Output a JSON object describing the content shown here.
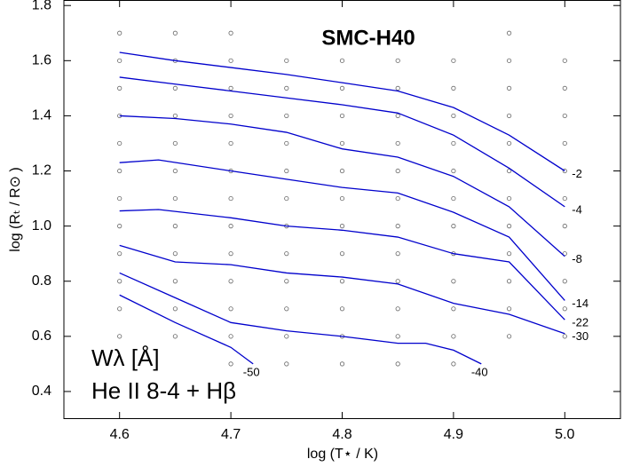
{
  "chart_data": {
    "type": "line",
    "title": "SMC-H40",
    "xlabel": "log (T⋆ / K)",
    "ylabel": "log (Rₜ / R⊙ )",
    "annotations": [
      "Wλ [Å]",
      "He II 8-4 + Hβ"
    ],
    "xlim": [
      4.55,
      5.05
    ],
    "ylim": [
      0.3,
      1.82
    ],
    "xticks": [
      4.6,
      4.7,
      4.8,
      4.9,
      {
        "value": 5,
        "label": "5.0"
      }
    ],
    "yticks": [
      0.4,
      0.6,
      0.8,
      {
        "value": 1,
        "label": "1.0"
      },
      1.2,
      1.4,
      1.6,
      1.8
    ],
    "series": [
      {
        "name": "-2",
        "color": "#0000cc",
        "x": [
          4.6,
          4.65,
          4.7,
          4.75,
          4.8,
          4.85,
          4.9,
          4.95,
          5.0
        ],
        "values": [
          1.63,
          1.6,
          1.575,
          1.55,
          1.52,
          1.49,
          1.43,
          1.33,
          1.2
        ]
      },
      {
        "name": "-4",
        "color": "#0000cc",
        "x": [
          4.6,
          4.65,
          4.7,
          4.75,
          4.8,
          4.85,
          4.9,
          4.95,
          5.0
        ],
        "values": [
          1.54,
          1.515,
          1.49,
          1.465,
          1.44,
          1.41,
          1.33,
          1.21,
          1.07
        ]
      },
      {
        "name": "-8",
        "color": "#0000cc",
        "x": [
          4.6,
          4.65,
          4.7,
          4.75,
          4.8,
          4.85,
          4.9,
          4.95,
          5.0
        ],
        "values": [
          1.4,
          1.39,
          1.37,
          1.34,
          1.28,
          1.25,
          1.18,
          1.07,
          0.89
        ]
      },
      {
        "name": "-14",
        "color": "#0000cc",
        "x": [
          4.6,
          4.635,
          4.7,
          4.75,
          4.8,
          4.85,
          4.9,
          4.95,
          5.0
        ],
        "values": [
          1.23,
          1.24,
          1.2,
          1.17,
          1.14,
          1.12,
          1.05,
          0.96,
          0.73
        ]
      },
      {
        "name": "-22",
        "color": "#0000cc",
        "x": [
          4.6,
          4.635,
          4.7,
          4.75,
          4.8,
          4.85,
          4.9,
          4.95,
          5.0
        ],
        "values": [
          1.055,
          1.06,
          1.03,
          1.0,
          0.985,
          0.96,
          0.9,
          0.87,
          0.66
        ]
      },
      {
        "name": "-30",
        "color": "#0000cc",
        "x": [
          4.6,
          4.65,
          4.7,
          4.75,
          4.8,
          4.85,
          4.9,
          4.95,
          5.0
        ],
        "values": [
          0.93,
          0.87,
          0.86,
          0.83,
          0.815,
          0.79,
          0.72,
          0.68,
          0.61
        ]
      },
      {
        "name": "-40",
        "color": "#0000cc",
        "x": [
          4.6,
          4.65,
          4.7,
          4.75,
          4.8,
          4.85,
          4.875,
          4.9,
          4.925
        ],
        "values": [
          0.83,
          0.74,
          0.65,
          0.62,
          0.6,
          0.575,
          0.575,
          0.55,
          0.5
        ]
      },
      {
        "name": "-50",
        "color": "#0000cc",
        "x": [
          4.6,
          4.65,
          4.7,
          4.72
        ],
        "values": [
          0.75,
          0.65,
          0.56,
          0.5
        ]
      }
    ],
    "points": {
      "color": "#666666",
      "x": [
        4.6,
        4.65,
        4.7,
        4.95,
        4.6,
        4.65,
        4.7,
        4.75,
        4.8,
        4.85,
        4.9,
        4.95,
        5.0,
        4.6,
        4.65,
        4.7,
        4.75,
        4.8,
        4.85,
        4.9,
        4.95,
        5.0,
        4.6,
        4.65,
        4.7,
        4.75,
        4.8,
        4.85,
        4.9,
        4.95,
        5.0,
        4.6,
        4.65,
        4.7,
        4.75,
        4.8,
        4.85,
        4.9,
        4.95,
        5.0,
        4.6,
        4.65,
        4.7,
        4.75,
        4.8,
        4.85,
        4.9,
        4.95,
        5.0,
        4.6,
        4.65,
        4.7,
        4.75,
        4.8,
        4.85,
        4.9,
        4.95,
        5.0,
        4.6,
        4.65,
        4.7,
        4.75,
        4.8,
        4.85,
        4.9,
        4.95,
        5.0,
        4.6,
        4.65,
        4.7,
        4.75,
        4.8,
        4.85,
        4.9,
        4.95,
        5.0,
        4.6,
        4.65,
        4.7,
        4.75,
        4.8,
        4.85,
        4.9,
        4.95,
        5.0,
        4.6,
        4.65,
        4.7,
        4.75,
        4.8,
        4.85,
        4.9,
        4.95,
        5.0,
        4.6,
        4.65,
        4.7,
        4.75,
        4.8,
        4.85,
        4.9,
        4.95,
        5.0,
        4.7,
        4.75,
        4.8,
        4.85,
        4.9
      ],
      "y": [
        1.7,
        1.7,
        1.7,
        1.7,
        1.6,
        1.6,
        1.6,
        1.6,
        1.6,
        1.6,
        1.6,
        1.6,
        1.6,
        1.5,
        1.5,
        1.5,
        1.5,
        1.5,
        1.5,
        1.5,
        1.5,
        1.5,
        1.4,
        1.4,
        1.4,
        1.4,
        1.4,
        1.4,
        1.4,
        1.4,
        1.4,
        1.3,
        1.3,
        1.3,
        1.3,
        1.3,
        1.3,
        1.3,
        1.3,
        1.3,
        1.2,
        1.2,
        1.2,
        1.2,
        1.2,
        1.2,
        1.2,
        1.2,
        1.2,
        1.1,
        1.1,
        1.1,
        1.1,
        1.1,
        1.1,
        1.1,
        1.1,
        1.1,
        1.0,
        1.0,
        1.0,
        1.0,
        1.0,
        1.0,
        1.0,
        1.0,
        1.0,
        0.9,
        0.9,
        0.9,
        0.9,
        0.9,
        0.9,
        0.9,
        0.9,
        0.9,
        0.8,
        0.8,
        0.8,
        0.8,
        0.8,
        0.8,
        0.8,
        0.8,
        0.8,
        0.7,
        0.7,
        0.7,
        0.7,
        0.7,
        0.7,
        0.7,
        0.7,
        0.7,
        0.6,
        0.6,
        0.6,
        0.6,
        0.6,
        0.6,
        0.6,
        0.6,
        0.6,
        0.5,
        0.5,
        0.5,
        0.5,
        0.5
      ]
    }
  }
}
